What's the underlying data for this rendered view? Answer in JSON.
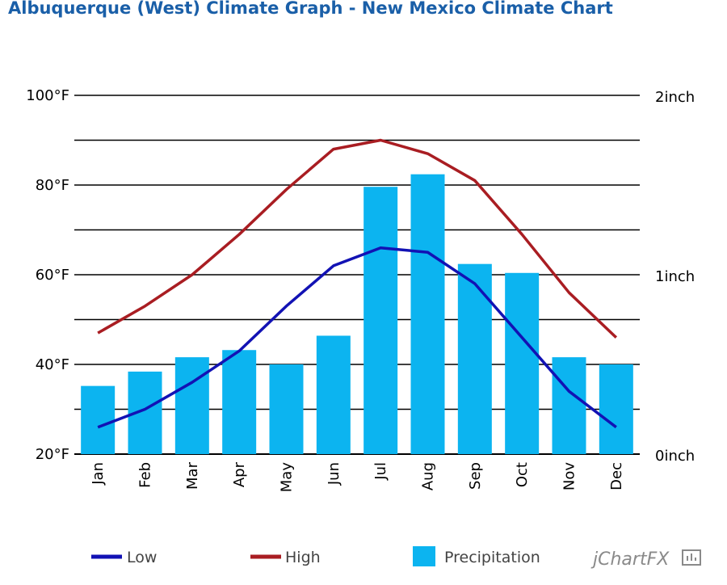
{
  "title": "Albuquerque (West) Climate Graph - New Mexico Climate Chart",
  "brand": "jChartFX",
  "colors": {
    "low": "#1212b4",
    "high": "#a91d22",
    "precip": "#0cb4f0",
    "title": "#1a5fa8"
  },
  "chart_data": {
    "type": "bar",
    "categories": [
      "Jan",
      "Feb",
      "Mar",
      "Apr",
      "May",
      "Jun",
      "Jul",
      "Aug",
      "Sep",
      "Oct",
      "Nov",
      "Dec"
    ],
    "left_axis": {
      "ticks": [
        "100°F",
        "80°F",
        "60°F",
        "40°F",
        "20°F"
      ],
      "ylim": [
        20,
        100
      ],
      "unit": "°F"
    },
    "right_axis": {
      "ticks": [
        "2inch",
        "1inch",
        "0inch"
      ],
      "ylim": [
        0,
        2
      ],
      "unit": "inch"
    },
    "series": [
      {
        "name": "Low",
        "type": "line",
        "axis": "left",
        "values": [
          26,
          30,
          36,
          43,
          53,
          62,
          66,
          65,
          58,
          46,
          34,
          26
        ]
      },
      {
        "name": "High",
        "type": "line",
        "axis": "left",
        "values": [
          47,
          53,
          60,
          69,
          79,
          88,
          90,
          87,
          81,
          69,
          56,
          46
        ]
      },
      {
        "name": "Precipitation",
        "type": "bar",
        "axis": "right",
        "values": [
          0.38,
          0.46,
          0.54,
          0.58,
          0.5,
          0.66,
          1.49,
          1.56,
          1.06,
          1.01,
          0.54,
          0.5
        ]
      }
    ],
    "legend": [
      "Low",
      "High",
      "Precipitation"
    ],
    "legend_position": "bottom",
    "grid": true
  }
}
